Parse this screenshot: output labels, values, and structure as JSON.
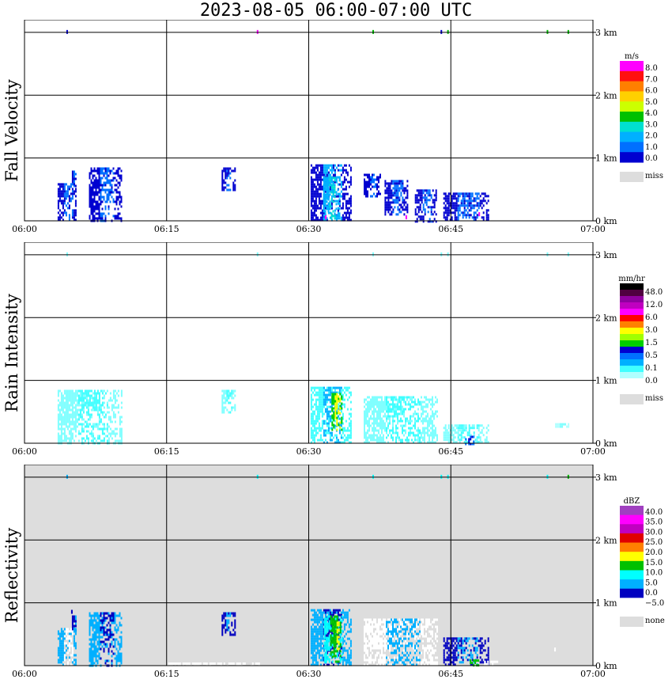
{
  "title": "2023-08-05   06:00-07:00 UTC",
  "x_ticks": [
    "06:00",
    "06:15",
    "06:30",
    "06:45",
    "07:00"
  ],
  "y_ticks": [
    "0 km",
    "1 km",
    "2 km",
    "3 km"
  ],
  "colors": {
    "missing": "#dddddd",
    "grid": "#000000"
  },
  "chart_data": [
    {
      "type": "heatmap",
      "title": "Fall Velocity",
      "x_range": [
        "06:00",
        "07:00"
      ],
      "y_range_km": [
        0,
        3.2
      ],
      "colorbar": {
        "unit": "m/s",
        "labels": [
          "8.0",
          "7.0",
          "6.0",
          "5.0",
          "4.0",
          "3.0",
          "2.0",
          "1.0",
          "0.0"
        ],
        "colors": [
          "#ff00ff",
          "#ff1010",
          "#ff7f00",
          "#ffd000",
          "#ccff00",
          "#00c000",
          "#00e0d0",
          "#00b0ff",
          "#0070ff",
          "#0000d0"
        ],
        "missing_label": "miss"
      },
      "background": "#ffffff",
      "echoes": [
        {
          "t0": 5.0,
          "t1": 5.5,
          "h0": 0.55,
          "h1": 0.8,
          "main": "#0000d0",
          "core": "#0070ff"
        },
        {
          "t0": 3.5,
          "t1": 5.5,
          "h0": 0.0,
          "h1": 0.6,
          "main": "#0000d0",
          "core": "#0070ff"
        },
        {
          "t0": 6.8,
          "t1": 10.2,
          "h0": 0.0,
          "h1": 0.85,
          "main": "#0000d0",
          "core": "#0070ff"
        },
        {
          "t0": 20.8,
          "t1": 22.3,
          "h0": 0.5,
          "h1": 0.85,
          "main": "#0000d0",
          "core": "#0070ff"
        },
        {
          "t0": 30.2,
          "t1": 34.5,
          "h0": 0.0,
          "h1": 0.9,
          "main": "#0000d0",
          "core": "#00b0ff"
        },
        {
          "t0": 31.5,
          "t1": 33.2,
          "h0": 0.05,
          "h1": 0.7,
          "main": "#00b0ff",
          "core": "#00e0d0"
        },
        {
          "t0": 35.8,
          "t1": 37.5,
          "h0": 0.4,
          "h1": 0.75,
          "main": "#0000d0",
          "core": "#0070ff"
        },
        {
          "t0": 38.0,
          "t1": 40.5,
          "h0": 0.1,
          "h1": 0.65,
          "main": "#0000d0",
          "core": "#0070ff"
        },
        {
          "t0": 41.2,
          "t1": 43.5,
          "h0": 0.0,
          "h1": 0.5,
          "main": "#0000d0",
          "core": "#0070ff"
        },
        {
          "t0": 44.2,
          "t1": 49.0,
          "h0": 0.0,
          "h1": 0.45,
          "main": "#0000d0",
          "core": "#0070ff"
        }
      ],
      "specks": [
        {
          "t": 4.5,
          "h": 3.0,
          "c": "#0000d0"
        },
        {
          "t": 24.6,
          "h": 3.0,
          "c": "#ff00ff"
        },
        {
          "t": 36.8,
          "h": 3.0,
          "c": "#00c000"
        },
        {
          "t": 44.0,
          "h": 3.0,
          "c": "#0000d0"
        },
        {
          "t": 44.7,
          "h": 3.0,
          "c": "#00c000"
        },
        {
          "t": 55.2,
          "h": 3.0,
          "c": "#00c000"
        },
        {
          "t": 57.4,
          "h": 3.0,
          "c": "#00c000"
        },
        {
          "t": 31.8,
          "h": 0.05,
          "c": "#ff00ff"
        },
        {
          "t": 40.3,
          "h": 0.05,
          "c": "#ff00ff"
        },
        {
          "t": 48.0,
          "h": 0.1,
          "c": "#ff00ff"
        }
      ]
    },
    {
      "type": "heatmap",
      "title": "Rain Intensity",
      "x_range": [
        "06:00",
        "07:00"
      ],
      "y_range_km": [
        0,
        3.2
      ],
      "colorbar": {
        "unit": "mm/hr",
        "labels": [
          "48.0",
          "12.0",
          "6.0",
          "3.0",
          "1.5",
          "0.5",
          "0.1",
          "0.0"
        ],
        "colors": [
          "#000000",
          "#500040",
          "#9000a0",
          "#c000c0",
          "#ff00ff",
          "#ff0000",
          "#ff8000",
          "#ffff00",
          "#a0ff00",
          "#00d000",
          "#0000d0",
          "#0070ff",
          "#00b0ff",
          "#40ffff",
          "#b0ffff",
          "#ffffff"
        ],
        "missing_label": "miss"
      },
      "background": "#ffffff",
      "echoes": [
        {
          "t0": 3.5,
          "t1": 10.2,
          "h0": 0.0,
          "h1": 0.85,
          "main": "#80ffff",
          "core": "#40ffff"
        },
        {
          "t0": 20.8,
          "t1": 22.3,
          "h0": 0.5,
          "h1": 0.85,
          "main": "#80ffff",
          "core": "#40ffff"
        },
        {
          "t0": 30.2,
          "t1": 34.5,
          "h0": 0.0,
          "h1": 0.9,
          "main": "#40ffff",
          "core": "#00b0ff"
        },
        {
          "t0": 32.4,
          "t1": 33.5,
          "h0": 0.2,
          "h1": 0.8,
          "main": "#00d000",
          "core": "#ffff00"
        },
        {
          "t0": 35.8,
          "t1": 43.5,
          "h0": 0.0,
          "h1": 0.75,
          "main": "#80ffff",
          "core": "#40ffff"
        },
        {
          "t0": 44.2,
          "t1": 49.0,
          "h0": 0.0,
          "h1": 0.3,
          "main": "#80ffff",
          "core": "#40ffff"
        },
        {
          "t0": 46.5,
          "t1": 47.5,
          "h0": 0.0,
          "h1": 0.12,
          "main": "#0070ff",
          "core": "#0000d0"
        },
        {
          "t0": 56.0,
          "t1": 57.5,
          "h0": 0.25,
          "h1": 0.32,
          "main": "#b0ffff",
          "core": "#80ffff"
        }
      ],
      "specks": [
        {
          "t": 4.5,
          "h": 3.0,
          "c": "#80ffff"
        },
        {
          "t": 24.6,
          "h": 3.0,
          "c": "#80ffff"
        },
        {
          "t": 36.8,
          "h": 3.0,
          "c": "#80ffff"
        },
        {
          "t": 44.0,
          "h": 3.0,
          "c": "#80ffff"
        },
        {
          "t": 44.7,
          "h": 3.0,
          "c": "#80ffff"
        },
        {
          "t": 55.2,
          "h": 3.0,
          "c": "#80ffff"
        },
        {
          "t": 57.4,
          "h": 3.0,
          "c": "#80ffff"
        }
      ]
    },
    {
      "type": "heatmap",
      "title": "Reflectivity",
      "x_range": [
        "06:00",
        "07:00"
      ],
      "y_range_km": [
        0,
        3.2
      ],
      "colorbar": {
        "unit": "dBZ",
        "labels": [
          "40.0",
          "35.0",
          "30.0",
          "25.0",
          "20.0",
          "15.0",
          "10.0",
          "5.0",
          "0.0",
          "−5.0"
        ],
        "colors": [
          "#a040c0",
          "#ff00ff",
          "#c000c0",
          "#e00000",
          "#ff7f00",
          "#ffff00",
          "#00c000",
          "#00ffff",
          "#00b0ff",
          "#0000c0",
          "#ffffff"
        ],
        "missing_label": "none"
      },
      "background": "#dddddd",
      "echoes": [
        {
          "t0": 5.0,
          "t1": 5.5,
          "h0": 0.55,
          "h1": 0.8,
          "main": "#0000c0",
          "core": "#00b0ff"
        },
        {
          "t0": 3.5,
          "t1": 5.5,
          "h0": 0.0,
          "h1": 0.6,
          "main": "#00b0ff",
          "core": "#ffffff"
        },
        {
          "t0": 6.8,
          "t1": 10.2,
          "h0": 0.0,
          "h1": 0.85,
          "main": "#00b0ff",
          "core": "#0000c0"
        },
        {
          "t0": 20.8,
          "t1": 22.3,
          "h0": 0.5,
          "h1": 0.85,
          "main": "#0000c0",
          "core": "#00b0ff"
        },
        {
          "t0": 30.2,
          "t1": 34.5,
          "h0": 0.0,
          "h1": 0.9,
          "main": "#00b0ff",
          "core": "#0000c0"
        },
        {
          "t0": 31.6,
          "t1": 33.6,
          "h0": 0.05,
          "h1": 0.8,
          "main": "#00ffff",
          "core": "#00c000"
        },
        {
          "t0": 32.6,
          "t1": 33.4,
          "h0": 0.1,
          "h1": 0.7,
          "main": "#00c000",
          "core": "#ffff00"
        },
        {
          "t0": 35.8,
          "t1": 43.5,
          "h0": 0.0,
          "h1": 0.75,
          "main": "#ffffff",
          "core": "#00b0ff"
        },
        {
          "t0": 44.2,
          "t1": 49.0,
          "h0": 0.0,
          "h1": 0.45,
          "main": "#0000c0",
          "core": "#00b0ff"
        },
        {
          "t0": 47.0,
          "t1": 48.0,
          "h0": 0.0,
          "h1": 0.1,
          "main": "#00c000",
          "core": "#00c000"
        },
        {
          "t0": 15.0,
          "t1": 25.0,
          "h0": 0.0,
          "h1": 0.05,
          "main": "#ffffff",
          "core": "#ffffff"
        },
        {
          "t0": 48.5,
          "t1": 50.0,
          "h0": 0.0,
          "h1": 0.08,
          "main": "#ffffff",
          "core": "#ffffff"
        }
      ],
      "specks": [
        {
          "t": 4.5,
          "h": 3.0,
          "c": "#00b0ff"
        },
        {
          "t": 24.6,
          "h": 3.0,
          "c": "#00ffff"
        },
        {
          "t": 36.8,
          "h": 3.0,
          "c": "#00ffff"
        },
        {
          "t": 44.0,
          "h": 3.0,
          "c": "#00ffff"
        },
        {
          "t": 44.7,
          "h": 3.0,
          "c": "#00ffff"
        },
        {
          "t": 55.2,
          "h": 3.0,
          "c": "#00ffff"
        },
        {
          "t": 57.4,
          "h": 3.0,
          "c": "#00c000"
        },
        {
          "t": 5.0,
          "h": 0.85,
          "c": "#0000c0"
        },
        {
          "t": 56.0,
          "h": 0.25,
          "c": "#ffffff"
        }
      ]
    }
  ]
}
